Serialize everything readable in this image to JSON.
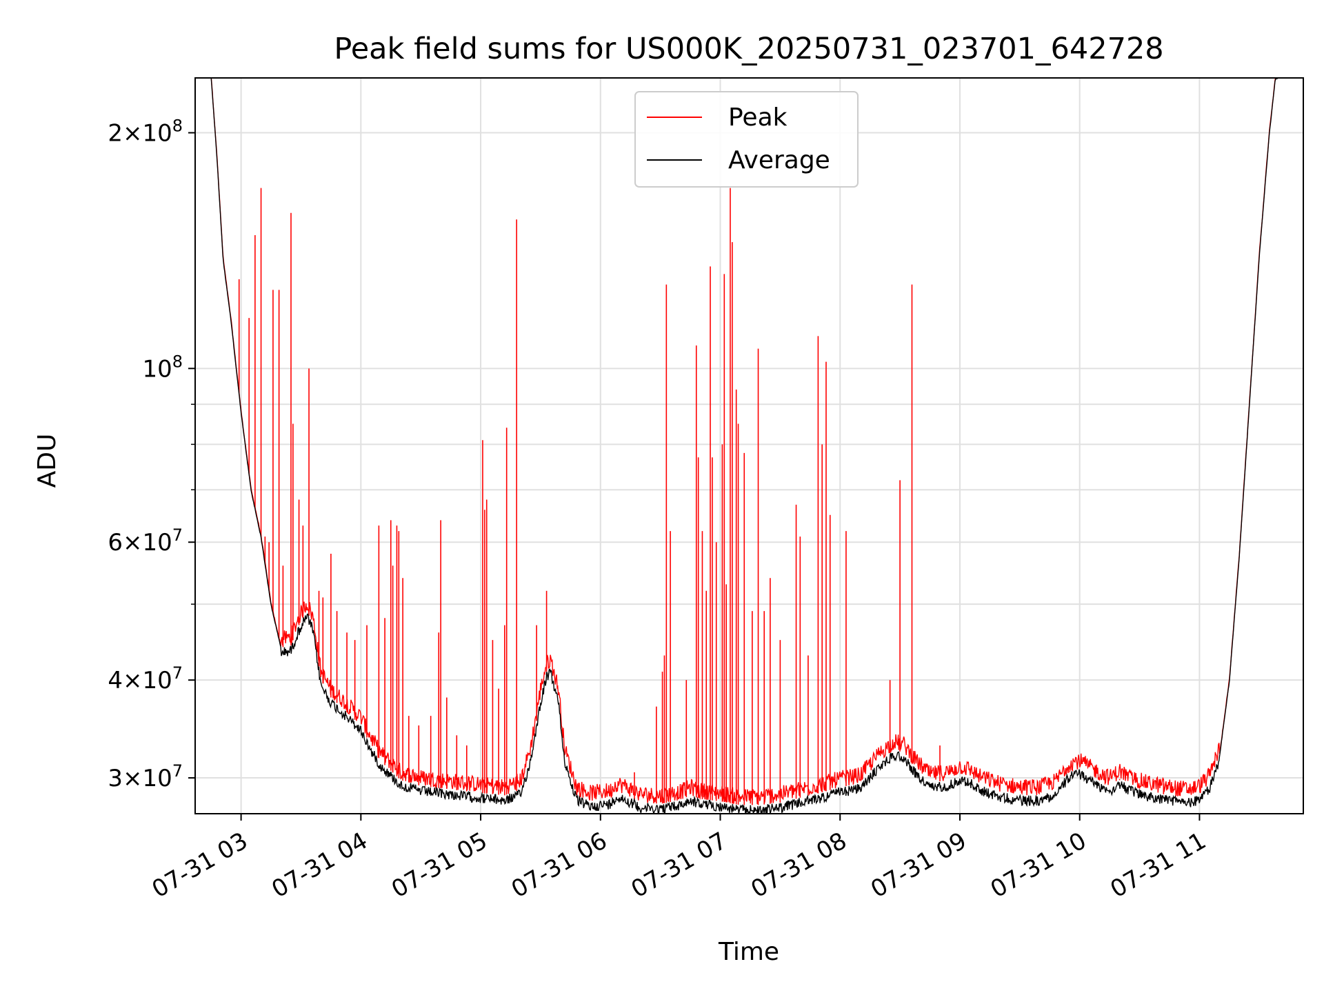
{
  "chart_data": {
    "type": "line",
    "title": "Peak field sums for US000K_20250731_023701_642728",
    "xlabel": "Time",
    "ylabel": "ADU",
    "y_scale": "log",
    "ylim": [
      27000000,
      235000000
    ],
    "xlim": [
      "2025-07-31 02:37",
      "2025-07-31 11:52"
    ],
    "grid": true,
    "legend_position": "top-center",
    "x_ticks": [
      {
        "label": "07-31 03",
        "time": "2025-07-31 03:00"
      },
      {
        "label": "07-31 04",
        "time": "2025-07-31 04:00"
      },
      {
        "label": "07-31 05",
        "time": "2025-07-31 05:00"
      },
      {
        "label": "07-31 06",
        "time": "2025-07-31 06:00"
      },
      {
        "label": "07-31 07",
        "time": "2025-07-31 07:00"
      },
      {
        "label": "07-31 08",
        "time": "2025-07-31 08:00"
      },
      {
        "label": "07-31 09",
        "time": "2025-07-31 09:00"
      },
      {
        "label": "07-31 10",
        "time": "2025-07-31 10:00"
      },
      {
        "label": "07-31 11",
        "time": "2025-07-31 11:00"
      }
    ],
    "y_ticks": [
      {
        "value": 30000000,
        "mantissa": "3",
        "exp": "7"
      },
      {
        "value": 40000000,
        "mantissa": "4",
        "exp": "7"
      },
      {
        "value": 60000000,
        "mantissa": "6",
        "exp": "7"
      },
      {
        "value": 100000000,
        "mantissa": "",
        "exp": "8"
      },
      {
        "value": 200000000,
        "mantissa": "2",
        "exp": "8"
      }
    ],
    "y_minor_ticks": [
      50000000,
      70000000,
      80000000,
      90000000
    ],
    "series": [
      {
        "name": "Peak",
        "color": "#ff0000",
        "baseline_ref": "Average",
        "spikes": [
          [
            "2025-07-31 02:59",
            130000000
          ],
          [
            "2025-07-31 03:04",
            116000000
          ],
          [
            "2025-07-31 03:07",
            148000000
          ],
          [
            "2025-07-31 03:10",
            170000000
          ],
          [
            "2025-07-31 03:12",
            61000000
          ],
          [
            "2025-07-31 03:14",
            60000000
          ],
          [
            "2025-07-31 03:16",
            126000000
          ],
          [
            "2025-07-31 03:19",
            126000000
          ],
          [
            "2025-07-31 03:21",
            56000000
          ],
          [
            "2025-07-31 03:25",
            158000000
          ],
          [
            "2025-07-31 03:26",
            85000000
          ],
          [
            "2025-07-31 03:29",
            68000000
          ],
          [
            "2025-07-31 03:31",
            63000000
          ],
          [
            "2025-07-31 03:34",
            100000000
          ],
          [
            "2025-07-31 03:39",
            52000000
          ],
          [
            "2025-07-31 03:41",
            51000000
          ],
          [
            "2025-07-31 03:45",
            58000000
          ],
          [
            "2025-07-31 03:48",
            49000000
          ],
          [
            "2025-07-31 03:53",
            46000000
          ],
          [
            "2025-07-31 03:57",
            45000000
          ],
          [
            "2025-07-31 04:03",
            47000000
          ],
          [
            "2025-07-31 04:09",
            63000000
          ],
          [
            "2025-07-31 04:12",
            48000000
          ],
          [
            "2025-07-31 04:15",
            64000000
          ],
          [
            "2025-07-31 04:16",
            56000000
          ],
          [
            "2025-07-31 04:18",
            63000000
          ],
          [
            "2025-07-31 04:19",
            62000000
          ],
          [
            "2025-07-31 04:21",
            54000000
          ],
          [
            "2025-07-31 04:24",
            36000000
          ],
          [
            "2025-07-31 04:29",
            35000000
          ],
          [
            "2025-07-31 04:35",
            36000000
          ],
          [
            "2025-07-31 04:39",
            46000000
          ],
          [
            "2025-07-31 04:40",
            64000000
          ],
          [
            "2025-07-31 04:43",
            38000000
          ],
          [
            "2025-07-31 04:48",
            34000000
          ],
          [
            "2025-07-31 04:53",
            33000000
          ],
          [
            "2025-07-31 05:01",
            81000000
          ],
          [
            "2025-07-31 05:02",
            66000000
          ],
          [
            "2025-07-31 05:03",
            68000000
          ],
          [
            "2025-07-31 05:06",
            45000000
          ],
          [
            "2025-07-31 05:09",
            39000000
          ],
          [
            "2025-07-31 05:12",
            47000000
          ],
          [
            "2025-07-31 05:13",
            84000000
          ],
          [
            "2025-07-31 05:18",
            155000000
          ],
          [
            "2025-07-31 05:28",
            47000000
          ],
          [
            "2025-07-31 05:33",
            52000000
          ],
          [
            "2025-07-31 06:17",
            30500000
          ],
          [
            "2025-07-31 06:28",
            37000000
          ],
          [
            "2025-07-31 06:31",
            41000000
          ],
          [
            "2025-07-31 06:32",
            43000000
          ],
          [
            "2025-07-31 06:33",
            128000000
          ],
          [
            "2025-07-31 06:35",
            62000000
          ],
          [
            "2025-07-31 06:43",
            40000000
          ],
          [
            "2025-07-31 06:48",
            107000000
          ],
          [
            "2025-07-31 06:49",
            77000000
          ],
          [
            "2025-07-31 06:51",
            62000000
          ],
          [
            "2025-07-31 06:53",
            52000000
          ],
          [
            "2025-07-31 06:55",
            135000000
          ],
          [
            "2025-07-31 06:56",
            77000000
          ],
          [
            "2025-07-31 06:58",
            60000000
          ],
          [
            "2025-07-31 07:01",
            80000000
          ],
          [
            "2025-07-31 07:02",
            132000000
          ],
          [
            "2025-07-31 07:03",
            53000000
          ],
          [
            "2025-07-31 07:05",
            170000000
          ],
          [
            "2025-07-31 07:06",
            145000000
          ],
          [
            "2025-07-31 07:08",
            94000000
          ],
          [
            "2025-07-31 07:09",
            85000000
          ],
          [
            "2025-07-31 07:12",
            78000000
          ],
          [
            "2025-07-31 07:16",
            49000000
          ],
          [
            "2025-07-31 07:19",
            106000000
          ],
          [
            "2025-07-31 07:22",
            49000000
          ],
          [
            "2025-07-31 07:25",
            54000000
          ],
          [
            "2025-07-31 07:30",
            45000000
          ],
          [
            "2025-07-31 07:38",
            67000000
          ],
          [
            "2025-07-31 07:40",
            61000000
          ],
          [
            "2025-07-31 07:44",
            43000000
          ],
          [
            "2025-07-31 07:49",
            110000000
          ],
          [
            "2025-07-31 07:51",
            80000000
          ],
          [
            "2025-07-31 07:53",
            102000000
          ],
          [
            "2025-07-31 07:55",
            65000000
          ],
          [
            "2025-07-31 08:03",
            62000000
          ],
          [
            "2025-07-31 08:25",
            40000000
          ],
          [
            "2025-07-31 08:30",
            72000000
          ],
          [
            "2025-07-31 08:36",
            128000000
          ],
          [
            "2025-07-31 08:50",
            33000000
          ],
          [
            "2025-07-31 09:55",
            30500000
          ],
          [
            "2025-07-31 10:20",
            29800000
          ],
          [
            "2025-07-31 10:42",
            29500000
          ],
          [
            "2025-07-31 10:49",
            29300000
          ]
        ]
      },
      {
        "name": "Average",
        "color": "#000000",
        "points": [
          [
            "2025-07-31 02:37",
            240000000
          ],
          [
            "2025-07-31 02:45",
            236000000
          ],
          [
            "2025-07-31 02:48",
            185000000
          ],
          [
            "2025-07-31 02:51",
            138000000
          ],
          [
            "2025-07-31 02:55",
            115000000
          ],
          [
            "2025-07-31 03:00",
            88000000
          ],
          [
            "2025-07-31 03:05",
            70000000
          ],
          [
            "2025-07-31 03:10",
            61000000
          ],
          [
            "2025-07-31 03:15",
            50000000
          ],
          [
            "2025-07-31 03:20",
            44000000
          ],
          [
            "2025-07-31 03:25",
            44300000
          ],
          [
            "2025-07-31 03:29",
            47000000
          ],
          [
            "2025-07-31 03:33",
            49000000
          ],
          [
            "2025-07-31 03:36",
            47000000
          ],
          [
            "2025-07-31 03:40",
            40000000
          ],
          [
            "2025-07-31 03:45",
            38000000
          ],
          [
            "2025-07-31 03:50",
            37000000
          ],
          [
            "2025-07-31 04:00",
            35000000
          ],
          [
            "2025-07-31 04:05",
            33000000
          ],
          [
            "2025-07-31 04:10",
            31500000
          ],
          [
            "2025-07-31 04:20",
            29800000
          ],
          [
            "2025-07-31 04:30",
            29300000
          ],
          [
            "2025-07-31 04:45",
            29000000
          ],
          [
            "2025-07-31 05:00",
            28700000
          ],
          [
            "2025-07-31 05:12",
            28500000
          ],
          [
            "2025-07-31 05:20",
            29000000
          ],
          [
            "2025-07-31 05:25",
            32000000
          ],
          [
            "2025-07-31 05:30",
            38000000
          ],
          [
            "2025-07-31 05:33",
            41000000
          ],
          [
            "2025-07-31 05:35",
            41500000
          ],
          [
            "2025-07-31 05:39",
            38000000
          ],
          [
            "2025-07-31 05:42",
            32000000
          ],
          [
            "2025-07-31 05:48",
            28500000
          ],
          [
            "2025-07-31 05:55",
            28000000
          ],
          [
            "2025-07-31 06:05",
            28200000
          ],
          [
            "2025-07-31 06:08",
            28800000
          ],
          [
            "2025-07-31 06:12",
            28600000
          ],
          [
            "2025-07-31 06:20",
            27900000
          ],
          [
            "2025-07-31 06:30",
            27800000
          ],
          [
            "2025-07-31 06:40",
            28100000
          ],
          [
            "2025-07-31 06:45",
            28500000
          ],
          [
            "2025-07-31 06:50",
            28200000
          ],
          [
            "2025-07-31 07:00",
            28000000
          ],
          [
            "2025-07-31 07:10",
            27700000
          ],
          [
            "2025-07-31 07:20",
            27700000
          ],
          [
            "2025-07-31 07:30",
            27900000
          ],
          [
            "2025-07-31 07:40",
            28300000
          ],
          [
            "2025-07-31 07:50",
            28700000
          ],
          [
            "2025-07-31 08:00",
            29200000
          ],
          [
            "2025-07-31 08:10",
            29500000
          ],
          [
            "2025-07-31 08:20",
            31500000
          ],
          [
            "2025-07-31 08:27",
            32600000
          ],
          [
            "2025-07-31 08:32",
            32300000
          ],
          [
            "2025-07-31 08:38",
            30800000
          ],
          [
            "2025-07-31 08:45",
            29600000
          ],
          [
            "2025-07-31 08:55",
            29800000
          ],
          [
            "2025-07-31 09:00",
            30300000
          ],
          [
            "2025-07-31 09:05",
            30000000
          ],
          [
            "2025-07-31 09:10",
            29400000
          ],
          [
            "2025-07-31 09:20",
            28800000
          ],
          [
            "2025-07-31 09:30",
            28500000
          ],
          [
            "2025-07-31 09:40",
            28500000
          ],
          [
            "2025-07-31 09:48",
            29000000
          ],
          [
            "2025-07-31 09:55",
            30600000
          ],
          [
            "2025-07-31 10:00",
            30800000
          ],
          [
            "2025-07-31 10:10",
            29700000
          ],
          [
            "2025-07-31 10:15",
            29300000
          ],
          [
            "2025-07-31 10:20",
            29900000
          ],
          [
            "2025-07-31 10:25",
            29300000
          ],
          [
            "2025-07-31 10:35",
            28800000
          ],
          [
            "2025-07-31 10:45",
            28500000
          ],
          [
            "2025-07-31 10:55",
            28300000
          ],
          [
            "2025-07-31 11:00",
            28600000
          ],
          [
            "2025-07-31 11:05",
            29500000
          ],
          [
            "2025-07-31 11:10",
            32000000
          ],
          [
            "2025-07-31 11:15",
            40000000
          ],
          [
            "2025-07-31 11:20",
            58000000
          ],
          [
            "2025-07-31 11:25",
            90000000
          ],
          [
            "2025-07-31 11:30",
            140000000
          ],
          [
            "2025-07-31 11:35",
            200000000
          ],
          [
            "2025-07-31 11:38",
            235000000
          ],
          [
            "2025-07-31 11:52",
            240000000
          ]
        ]
      }
    ],
    "legend": [
      {
        "label": "Peak",
        "color": "#ff0000"
      },
      {
        "label": "Average",
        "color": "#000000"
      }
    ]
  }
}
